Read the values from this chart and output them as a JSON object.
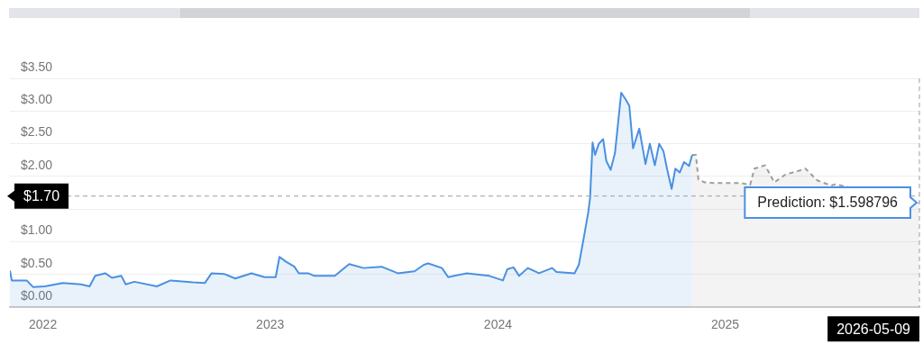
{
  "chart_data": {
    "type": "area",
    "xlim": [
      "2022-05-09",
      "2026-05-09"
    ],
    "xticks": [
      {
        "value": "2022-07-01",
        "label": "2022"
      },
      {
        "value": "2023-07-01",
        "label": "2023"
      },
      {
        "value": "2024-07-01",
        "label": "2024"
      },
      {
        "value": "2025-07-01",
        "label": "2025"
      }
    ],
    "ylim": [
      0,
      3.5
    ],
    "yticks": [
      {
        "value": 0,
        "label": "$0.00"
      },
      {
        "value": 0.5,
        "label": "$0.50"
      },
      {
        "value": 1,
        "label": "$1.00"
      },
      {
        "value": 1.5,
        "label": null
      },
      {
        "value": 2,
        "label": "$2.00"
      },
      {
        "value": 2.5,
        "label": "$2.50"
      },
      {
        "value": 3,
        "label": "$3.00"
      },
      {
        "value": 3.5,
        "label": "$3.50"
      }
    ],
    "grid": "y",
    "legend": false,
    "marker": "none",
    "series": [
      {
        "color": "#4a90e2",
        "line_style": "solid",
        "x": [
          "2022-05-09",
          "2022-05-12",
          "2022-06-05",
          "2022-06-15",
          "2022-07-04",
          "2022-08-02",
          "2022-08-31",
          "2022-09-14",
          "2022-09-23",
          "2022-10-09",
          "2022-10-20",
          "2022-11-04",
          "2022-11-11",
          "2022-11-25",
          "2022-12-31",
          "2023-01-22",
          "2023-02-27",
          "2023-03-18",
          "2023-03-29",
          "2023-04-18",
          "2023-05-06",
          "2023-06-01",
          "2023-06-22",
          "2023-07-10",
          "2023-07-16",
          "2023-07-26",
          "2023-08-09",
          "2023-08-16",
          "2023-08-31",
          "2023-09-10",
          "2023-10-13",
          "2023-11-05",
          "2023-11-28",
          "2023-12-27",
          "2024-01-22",
          "2024-02-18",
          "2024-03-04",
          "2024-03-11",
          "2024-04-02",
          "2024-04-12",
          "2024-05-12",
          "2024-06-17",
          "2024-07-09",
          "2024-07-16",
          "2024-07-26",
          "2024-08-04",
          "2024-08-18",
          "2024-09-05",
          "2024-09-26",
          "2024-10-03",
          "2024-11-01",
          "2024-11-08",
          "2024-11-16",
          "2024-11-23",
          "2024-11-26",
          "2024-11-30",
          "2024-12-04",
          "2024-12-10",
          "2024-12-17",
          "2024-12-22",
          "2024-12-29",
          "2025-01-05",
          "2025-01-15",
          "2025-01-22",
          "2025-01-28",
          "2025-02-03",
          "2025-02-13",
          "2025-02-23",
          "2025-03-02",
          "2025-03-10",
          "2025-03-17",
          "2025-03-24",
          "2025-03-30",
          "2025-04-06",
          "2025-04-12",
          "2025-04-19",
          "2025-04-26",
          "2025-05-04",
          "2025-05-09"
        ],
        "values": [
          0.56,
          0.41,
          0.41,
          0.31,
          0.32,
          0.37,
          0.35,
          0.32,
          0.48,
          0.52,
          0.45,
          0.48,
          0.35,
          0.39,
          0.32,
          0.41,
          0.38,
          0.37,
          0.52,
          0.51,
          0.44,
          0.52,
          0.46,
          0.46,
          0.77,
          0.7,
          0.62,
          0.52,
          0.52,
          0.48,
          0.48,
          0.66,
          0.6,
          0.62,
          0.52,
          0.55,
          0.65,
          0.67,
          0.6,
          0.46,
          0.52,
          0.48,
          0.41,
          0.58,
          0.61,
          0.48,
          0.6,
          0.52,
          0.6,
          0.54,
          0.52,
          0.65,
          1.07,
          1.45,
          1.67,
          2.52,
          2.33,
          2.5,
          2.57,
          2.24,
          2.1,
          2.36,
          3.28,
          3.18,
          3.08,
          2.43,
          2.73,
          2.19,
          2.5,
          2.17,
          2.5,
          2.38,
          2.1,
          1.81,
          2.12,
          2.06,
          2.22,
          2.16,
          2.33
        ]
      },
      {
        "color": "#9e9e9e",
        "line_style": "dashed",
        "x": [
          "2025-05-09",
          "2025-05-15",
          "2025-05-19",
          "2025-05-29",
          "2025-06-13",
          "2025-07-05",
          "2025-07-26",
          "2025-08-10",
          "2025-08-17",
          "2025-09-03",
          "2025-09-18",
          "2025-10-06",
          "2025-11-01",
          "2025-11-07",
          "2025-11-26",
          "2025-12-18",
          "2025-12-25",
          "2026-05-09"
        ],
        "values": [
          2.33,
          2.33,
          1.95,
          1.91,
          1.9,
          1.9,
          1.9,
          1.87,
          2.12,
          2.17,
          1.91,
          2.03,
          2.1,
          2.12,
          1.94,
          1.86,
          1.88,
          1.6
        ]
      }
    ],
    "ref_lines": [
      {
        "axis": "y",
        "value": 1.7,
        "label": "$1.70",
        "color": "#9e9e9e",
        "line_style": "dashed"
      },
      {
        "axis": "x",
        "value": "2026-05-09",
        "label": "2026-05-09",
        "color": "#9e9e9e",
        "line_style": "dashed"
      }
    ],
    "annotations": [
      {
        "text": "Prediction: $1.598796",
        "x": "2026-05-09",
        "y": 1.598796
      }
    ]
  }
}
